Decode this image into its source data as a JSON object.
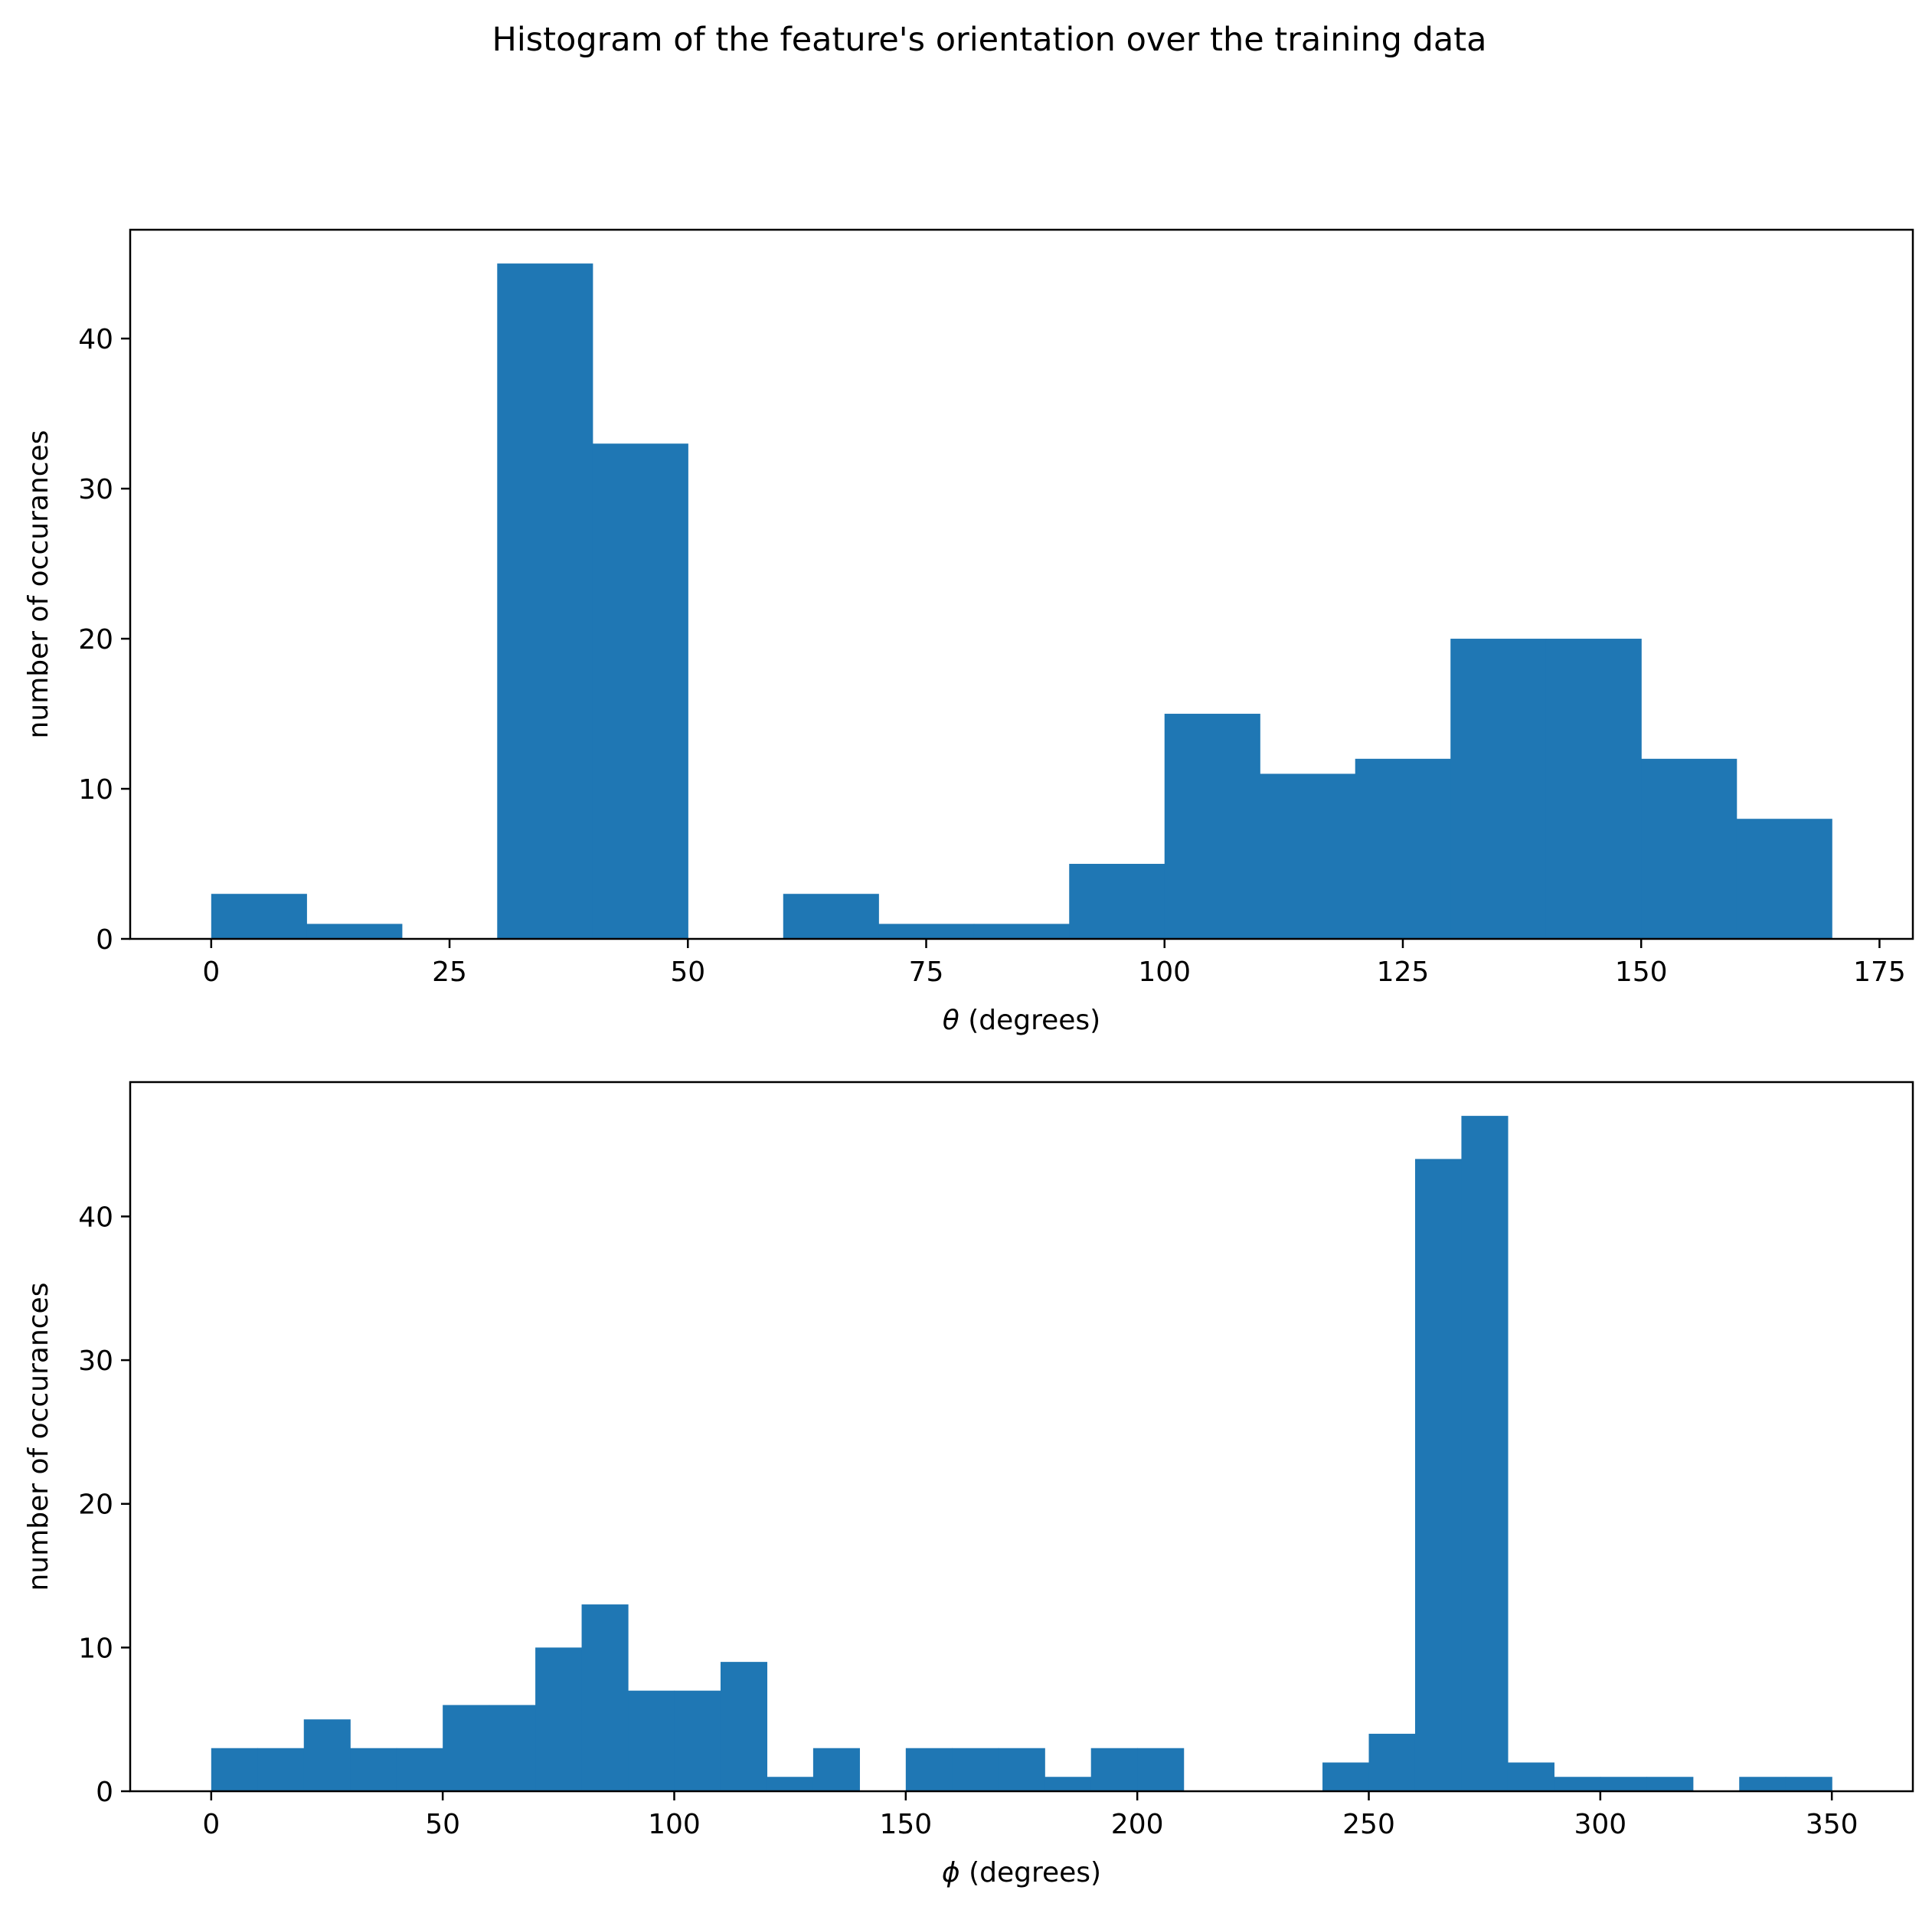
{
  "title": "Histogram of the feature's orientation over the training data",
  "colors": {
    "bar": "#1f77b4",
    "axis": "#000000",
    "background": "#ffffff"
  },
  "chart_data": [
    {
      "type": "bar",
      "subtype": "histogram",
      "xlabel_symbol": "θ",
      "xlabel_text": " (degrees)",
      "ylabel": "number of occurances",
      "bin_width": 10,
      "bin_edges_start": 0,
      "values": [
        3,
        1,
        0,
        45,
        33,
        0,
        3,
        1,
        1,
        5,
        15,
        11,
        12,
        20,
        20,
        12,
        8
      ],
      "xlim": [
        -8.5,
        178.5
      ],
      "ylim": [
        0,
        47.25
      ],
      "xticks": [
        0,
        25,
        50,
        75,
        100,
        125,
        150,
        175
      ],
      "yticks": [
        0,
        10,
        20,
        30,
        40
      ],
      "xtick_labels": [
        "0",
        "25",
        "50",
        "75",
        "100",
        "125",
        "150",
        "175"
      ],
      "ytick_labels": [
        "0",
        "10",
        "20",
        "30",
        "40"
      ]
    },
    {
      "type": "bar",
      "subtype": "histogram",
      "xlabel_symbol": "ϕ",
      "xlabel_text": " (degrees)",
      "ylabel": "number of occurances",
      "bin_width": 10,
      "bin_edges_start": 0,
      "values": [
        3,
        3,
        5,
        3,
        3,
        6,
        6,
        10,
        13,
        7,
        7,
        9,
        1,
        3,
        0,
        3,
        3,
        3,
        1,
        3,
        3,
        0,
        0,
        0,
        2,
        4,
        44,
        47,
        2,
        1,
        1,
        1,
        0,
        1,
        1
      ],
      "xlim": [
        -17.5,
        367.5
      ],
      "ylim": [
        0,
        49.35
      ],
      "xticks": [
        0,
        50,
        100,
        150,
        200,
        250,
        300,
        350
      ],
      "yticks": [
        0,
        10,
        20,
        30,
        40
      ],
      "xtick_labels": [
        "0",
        "50",
        "100",
        "150",
        "200",
        "250",
        "300",
        "350"
      ],
      "ytick_labels": [
        "0",
        "10",
        "20",
        "30",
        "40"
      ]
    }
  ]
}
